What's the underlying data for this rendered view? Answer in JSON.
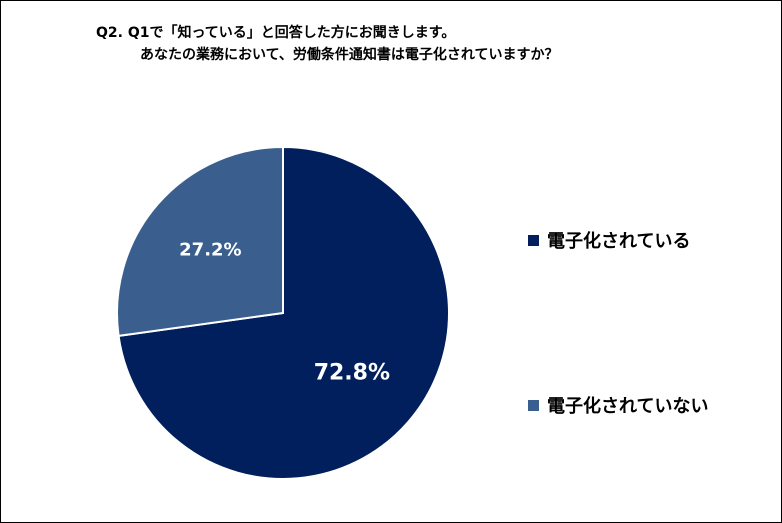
{
  "chart_data": {
    "type": "pie",
    "title_line1": "Q2.  Q1で「知っている」と回答した方にお聞きします。",
    "title_line2": "あなたの業務において、労働条件通知書は電子化されていますか？",
    "slices": [
      {
        "name": "電子化されている",
        "value": 72.8,
        "label": "72.8%",
        "color": "#001f5c"
      },
      {
        "name": "電子化されていない",
        "value": 27.2,
        "label": "27.2%",
        "color": "#3a5f8f"
      }
    ],
    "legend_placement": "right"
  }
}
